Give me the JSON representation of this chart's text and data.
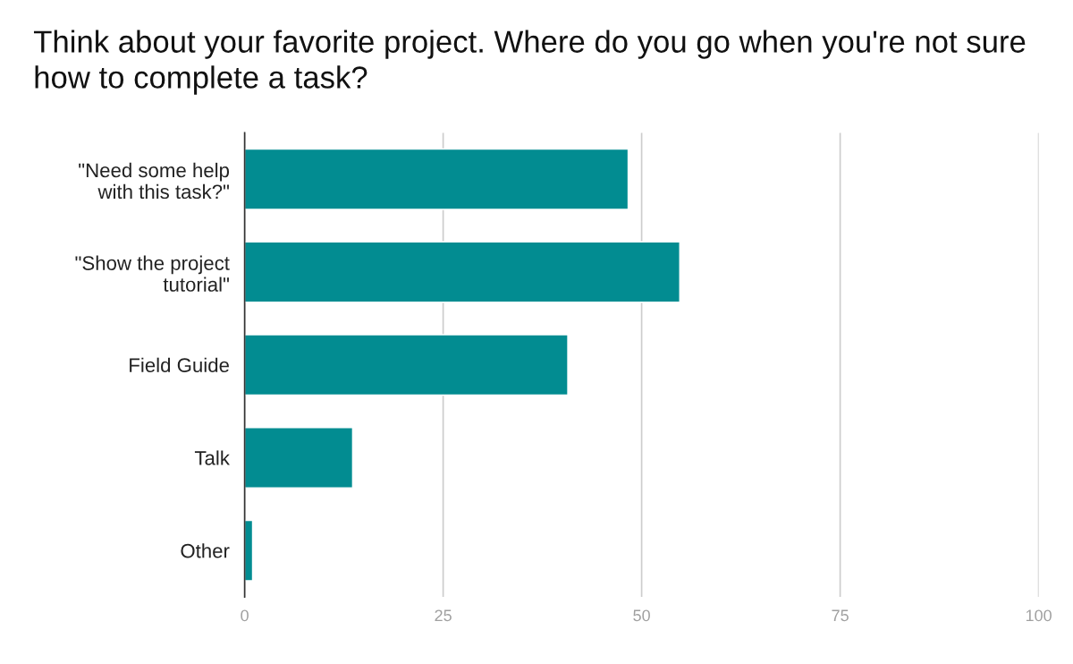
{
  "chart_data": {
    "type": "bar",
    "orientation": "horizontal",
    "title": "Think about your favorite project. Where do you go when you're not sure how to complete a task?",
    "categories": [
      "\"Need some help\nwith this task?\"",
      "\"Show the project\ntutorial\"",
      "Field Guide",
      "Talk",
      "Other"
    ],
    "values": [
      48.3,
      54.8,
      40.7,
      13.6,
      1.0
    ],
    "color": "#028c91",
    "xlim": [
      0,
      100
    ],
    "xticks": [
      0,
      25,
      50,
      75,
      100
    ],
    "grid": "x"
  }
}
